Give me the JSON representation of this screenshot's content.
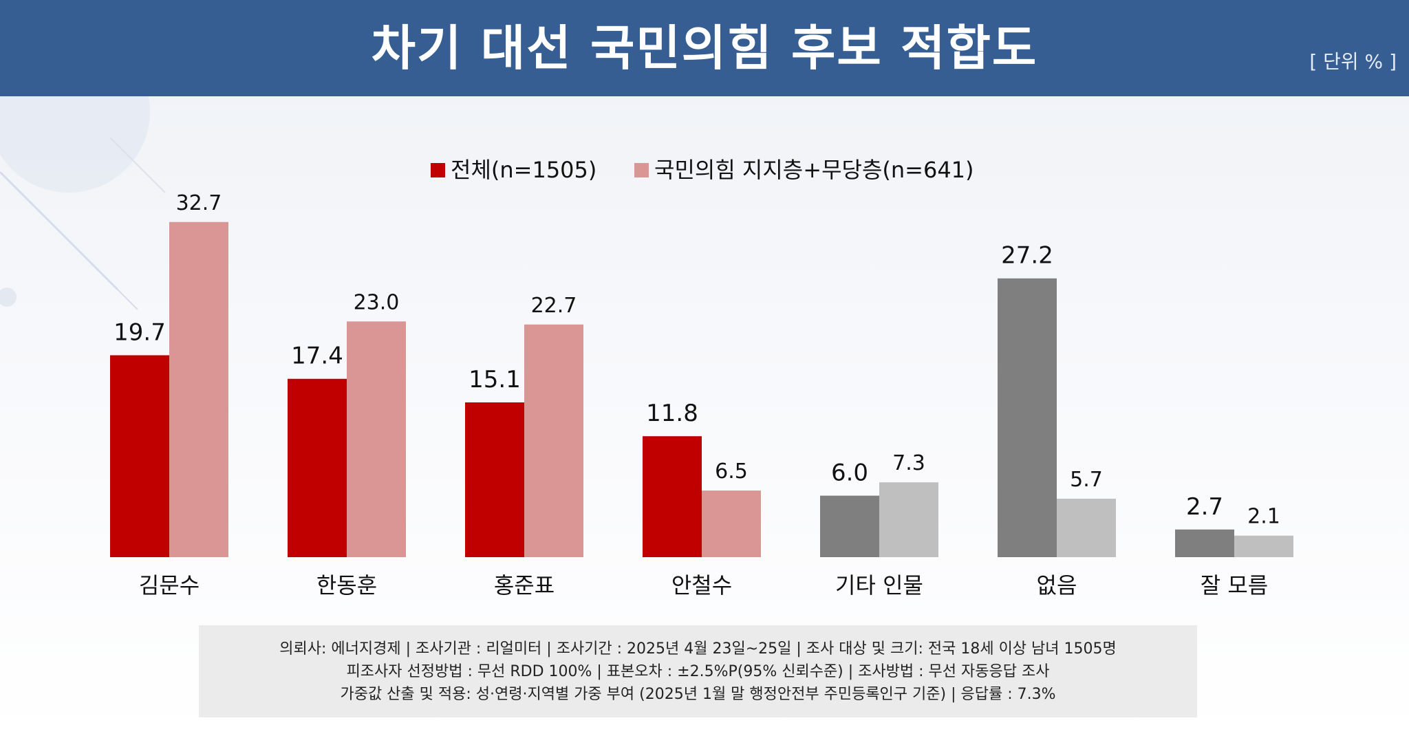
{
  "header": {
    "title": "차기 대선 국민의힘 후보 적합도",
    "unit": "[ 단위 % ]"
  },
  "colors": {
    "header_bg": "#365e93",
    "series1_red": "#c00000",
    "series2_pink": "#d99694",
    "series1_gray": "#7f7f7f",
    "series2_lightgray": "#bfbfbf"
  },
  "chart_data": {
    "type": "bar",
    "title": "차기 대선 국민의힘 후보 적합도",
    "unit": "%",
    "legend_position": "top-center",
    "categories": [
      "김문수",
      "한동훈",
      "홍준표",
      "안철수",
      "기타 인물",
      "없음",
      "잘 모름"
    ],
    "series": [
      {
        "name": "전체(n=1505)",
        "values": [
          19.7,
          17.4,
          15.1,
          11.8,
          6.0,
          27.2,
          2.7
        ]
      },
      {
        "name": "국민의힘 지지층+무당층(n=641)",
        "values": [
          32.7,
          23.0,
          22.7,
          6.5,
          7.3,
          5.7,
          2.1
        ]
      }
    ],
    "value_labels": [
      [
        "19.7",
        "17.4",
        "15.1",
        "11.8",
        "6.0",
        "27.2",
        "2.7"
      ],
      [
        "32.7",
        "23.0",
        "22.7",
        "6.5",
        "7.3",
        "5.7",
        "2.1"
      ]
    ],
    "highlight_categories_count": 4,
    "ylim": [
      0,
      33
    ],
    "grid": false
  },
  "footer": {
    "lines": [
      "의뢰사: 에너지경제 | 조사기관 : 리얼미터  |  조사기간 : 2025년 4월 23일~25일 | 조사 대상 및 크기: 전국 18세 이상 남녀 1505명",
      "피조사자 선정방법 : 무선 RDD 100% | 표본오차 : ±2.5%P(95% 신뢰수준) | 조사방법 : 무선 자동응답 조사",
      "가중값 산출 및 적용: 성·연령·지역별 가중 부여 (2025년 1월 말 행정안전부 주민등록인구 기준) | 응답률 : 7.3%"
    ]
  }
}
